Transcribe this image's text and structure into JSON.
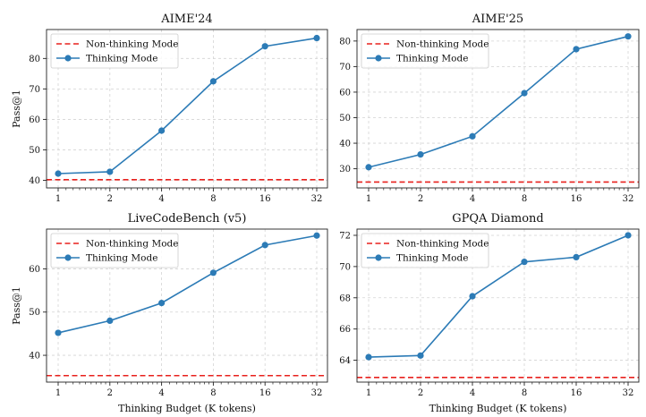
{
  "legend": {
    "baseline_label": "Non-thinking Mode",
    "series_label": "Thinking Mode"
  },
  "colors": {
    "series": "#2c7bb6",
    "baseline": "#e8211d",
    "grid": "#d4d4d4",
    "axis": "#222222"
  },
  "chart_data": [
    {
      "type": "line",
      "title": "AIME'24",
      "xlabel": "",
      "ylabel": "Pass@1",
      "x_scale": "log2",
      "x": [
        1,
        2,
        4,
        8,
        16,
        32
      ],
      "x_tick_labels": [
        "1",
        "2",
        "4",
        "8",
        "16",
        "32"
      ],
      "y_ticks": [
        40,
        50,
        60,
        70,
        80
      ],
      "ylim": [
        37.5,
        89.5
      ],
      "grid": true,
      "legend_position": "top-left",
      "series": [
        {
          "name": "Thinking Mode",
          "values": [
            42.2,
            42.8,
            56.3,
            72.5,
            84.0,
            86.7
          ]
        }
      ],
      "baseline": {
        "name": "Non-thinking Mode",
        "value": 40.2
      }
    },
    {
      "type": "line",
      "title": "AIME'25",
      "xlabel": "",
      "ylabel": "",
      "x_scale": "log2",
      "x": [
        1,
        2,
        4,
        8,
        16,
        32
      ],
      "x_tick_labels": [
        "1",
        "2",
        "4",
        "8",
        "16",
        "32"
      ],
      "y_ticks": [
        30,
        40,
        50,
        60,
        70,
        80
      ],
      "ylim": [
        22.5,
        84.5
      ],
      "grid": true,
      "legend_position": "top-left",
      "series": [
        {
          "name": "Thinking Mode",
          "values": [
            30.6,
            35.6,
            42.7,
            59.6,
            76.8,
            81.8
          ]
        }
      ],
      "baseline": {
        "name": "Non-thinking Mode",
        "value": 24.8
      }
    },
    {
      "type": "line",
      "title": "LiveCodeBench (v5)",
      "xlabel": "Thinking Budget (K tokens)",
      "ylabel": "Pass@1",
      "x_scale": "log2",
      "x": [
        1,
        2,
        4,
        8,
        16,
        32
      ],
      "x_tick_labels": [
        "1",
        "2",
        "4",
        "8",
        "16",
        "32"
      ],
      "y_ticks": [
        40,
        50,
        60
      ],
      "ylim": [
        33.8,
        69.2
      ],
      "grid": true,
      "legend_position": "top-left",
      "series": [
        {
          "name": "Thinking Mode",
          "values": [
            45.2,
            48.0,
            52.1,
            59.1,
            65.5,
            67.7
          ]
        }
      ],
      "baseline": {
        "name": "Non-thinking Mode",
        "value": 35.3
      }
    },
    {
      "type": "line",
      "title": "GPQA Diamond",
      "xlabel": "Thinking Budget (K tokens)",
      "ylabel": "",
      "x_scale": "log2",
      "x": [
        1,
        2,
        4,
        8,
        16,
        32
      ],
      "x_tick_labels": [
        "1",
        "2",
        "4",
        "8",
        "16",
        "32"
      ],
      "y_ticks": [
        64,
        66,
        68,
        70,
        72
      ],
      "ylim": [
        62.6,
        72.4
      ],
      "grid": true,
      "legend_position": "top-left",
      "series": [
        {
          "name": "Thinking Mode",
          "values": [
            64.2,
            64.3,
            68.1,
            70.3,
            70.6,
            72.0
          ]
        }
      ],
      "baseline": {
        "name": "Non-thinking Mode",
        "value": 62.9
      }
    }
  ]
}
